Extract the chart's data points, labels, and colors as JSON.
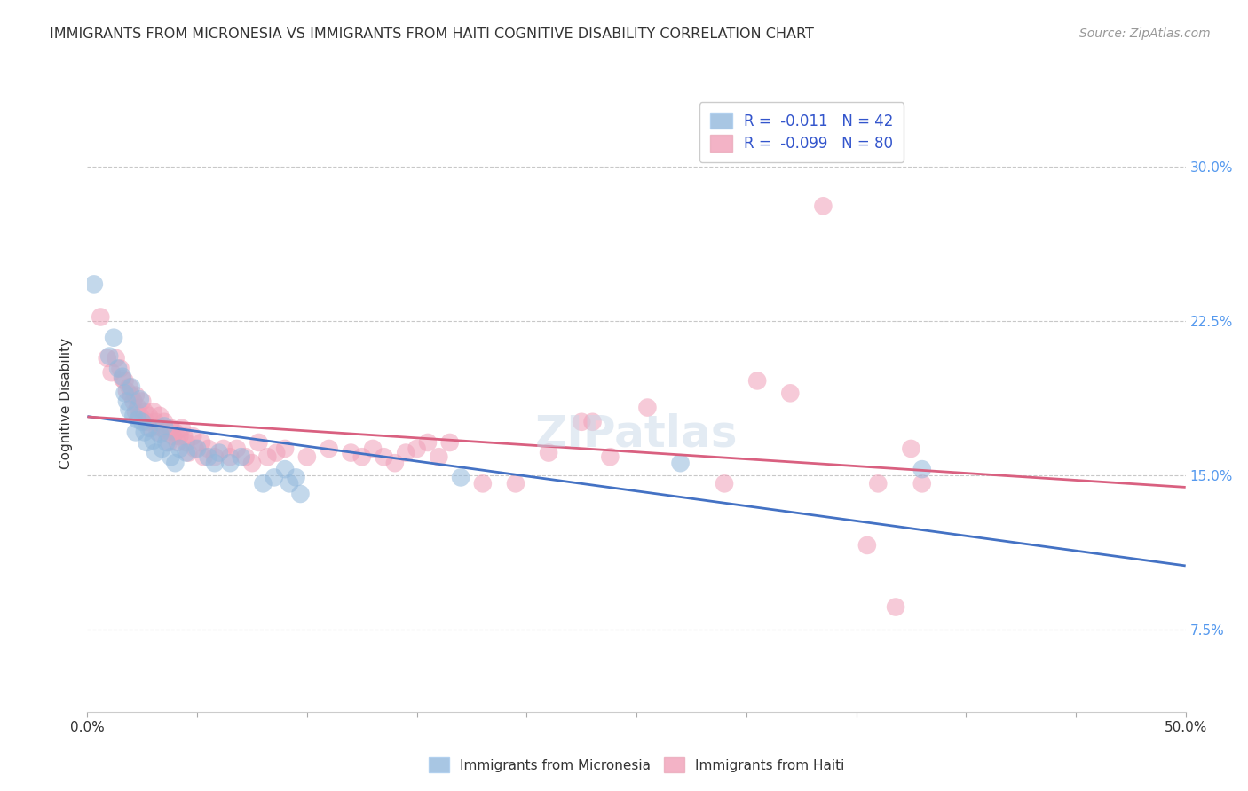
{
  "title": "IMMIGRANTS FROM MICRONESIA VS IMMIGRANTS FROM HAITI COGNITIVE DISABILITY CORRELATION CHART",
  "source": "Source: ZipAtlas.com",
  "ylabel": "Cognitive Disability",
  "ytick_labels": [
    "7.5%",
    "15.0%",
    "22.5%",
    "30.0%"
  ],
  "ytick_values": [
    0.075,
    0.15,
    0.225,
    0.3
  ],
  "xlim": [
    0.0,
    0.5
  ],
  "ylim": [
    0.035,
    0.335
  ],
  "legend_r_label_1": "R =  -0.011   N = 42",
  "legend_r_label_2": "R =  -0.099   N = 80",
  "micronesia_color": "#92b8dc",
  "haiti_color": "#f0a0b8",
  "micronesia_line_color": "#4472c4",
  "haiti_line_color": "#d96080",
  "bottom_legend_1": "Immigrants from Micronesia",
  "bottom_legend_2": "Immigrants from Haiti",
  "micronesia_scatter": [
    [
      0.003,
      0.243
    ],
    [
      0.01,
      0.208
    ],
    [
      0.012,
      0.217
    ],
    [
      0.014,
      0.202
    ],
    [
      0.016,
      0.198
    ],
    [
      0.017,
      0.19
    ],
    [
      0.018,
      0.186
    ],
    [
      0.019,
      0.182
    ],
    [
      0.02,
      0.193
    ],
    [
      0.021,
      0.179
    ],
    [
      0.022,
      0.171
    ],
    [
      0.023,
      0.177
    ],
    [
      0.024,
      0.187
    ],
    [
      0.025,
      0.176
    ],
    [
      0.026,
      0.171
    ],
    [
      0.027,
      0.166
    ],
    [
      0.028,
      0.173
    ],
    [
      0.03,
      0.167
    ],
    [
      0.031,
      0.161
    ],
    [
      0.033,
      0.17
    ],
    [
      0.034,
      0.163
    ],
    [
      0.035,
      0.174
    ],
    [
      0.036,
      0.166
    ],
    [
      0.038,
      0.159
    ],
    [
      0.04,
      0.156
    ],
    [
      0.042,
      0.163
    ],
    [
      0.045,
      0.161
    ],
    [
      0.05,
      0.163
    ],
    [
      0.055,
      0.159
    ],
    [
      0.058,
      0.156
    ],
    [
      0.06,
      0.161
    ],
    [
      0.065,
      0.156
    ],
    [
      0.07,
      0.159
    ],
    [
      0.08,
      0.146
    ],
    [
      0.085,
      0.149
    ],
    [
      0.09,
      0.153
    ],
    [
      0.092,
      0.146
    ],
    [
      0.095,
      0.149
    ],
    [
      0.097,
      0.141
    ],
    [
      0.17,
      0.149
    ],
    [
      0.27,
      0.156
    ],
    [
      0.38,
      0.153
    ]
  ],
  "haiti_scatter": [
    [
      0.006,
      0.227
    ],
    [
      0.009,
      0.207
    ],
    [
      0.011,
      0.2
    ],
    [
      0.013,
      0.207
    ],
    [
      0.015,
      0.202
    ],
    [
      0.016,
      0.197
    ],
    [
      0.017,
      0.196
    ],
    [
      0.018,
      0.191
    ],
    [
      0.019,
      0.193
    ],
    [
      0.02,
      0.189
    ],
    [
      0.021,
      0.186
    ],
    [
      0.022,
      0.181
    ],
    [
      0.022,
      0.189
    ],
    [
      0.023,
      0.183
    ],
    [
      0.024,
      0.179
    ],
    [
      0.025,
      0.186
    ],
    [
      0.026,
      0.181
    ],
    [
      0.027,
      0.176
    ],
    [
      0.028,
      0.179
    ],
    [
      0.029,
      0.173
    ],
    [
      0.03,
      0.181
    ],
    [
      0.031,
      0.176
    ],
    [
      0.032,
      0.171
    ],
    [
      0.033,
      0.179
    ],
    [
      0.034,
      0.173
    ],
    [
      0.035,
      0.176
    ],
    [
      0.036,
      0.171
    ],
    [
      0.037,
      0.166
    ],
    [
      0.038,
      0.173
    ],
    [
      0.039,
      0.169
    ],
    [
      0.04,
      0.171
    ],
    [
      0.041,
      0.166
    ],
    [
      0.042,
      0.169
    ],
    [
      0.043,
      0.173
    ],
    [
      0.044,
      0.169
    ],
    [
      0.045,
      0.166
    ],
    [
      0.046,
      0.161
    ],
    [
      0.048,
      0.169
    ],
    [
      0.049,
      0.163
    ],
    [
      0.052,
      0.166
    ],
    [
      0.053,
      0.159
    ],
    [
      0.055,
      0.163
    ],
    [
      0.058,
      0.159
    ],
    [
      0.062,
      0.163
    ],
    [
      0.065,
      0.159
    ],
    [
      0.068,
      0.163
    ],
    [
      0.072,
      0.159
    ],
    [
      0.075,
      0.156
    ],
    [
      0.078,
      0.166
    ],
    [
      0.082,
      0.159
    ],
    [
      0.086,
      0.161
    ],
    [
      0.09,
      0.163
    ],
    [
      0.1,
      0.159
    ],
    [
      0.11,
      0.163
    ],
    [
      0.12,
      0.161
    ],
    [
      0.125,
      0.159
    ],
    [
      0.13,
      0.163
    ],
    [
      0.135,
      0.159
    ],
    [
      0.14,
      0.156
    ],
    [
      0.145,
      0.161
    ],
    [
      0.15,
      0.163
    ],
    [
      0.155,
      0.166
    ],
    [
      0.16,
      0.159
    ],
    [
      0.165,
      0.166
    ],
    [
      0.18,
      0.146
    ],
    [
      0.195,
      0.146
    ],
    [
      0.21,
      0.161
    ],
    [
      0.225,
      0.176
    ],
    [
      0.23,
      0.176
    ],
    [
      0.238,
      0.159
    ],
    [
      0.255,
      0.183
    ],
    [
      0.29,
      0.146
    ],
    [
      0.305,
      0.196
    ],
    [
      0.32,
      0.19
    ],
    [
      0.335,
      0.281
    ],
    [
      0.355,
      0.116
    ],
    [
      0.36,
      0.146
    ],
    [
      0.368,
      0.086
    ],
    [
      0.375,
      0.163
    ],
    [
      0.38,
      0.146
    ]
  ]
}
